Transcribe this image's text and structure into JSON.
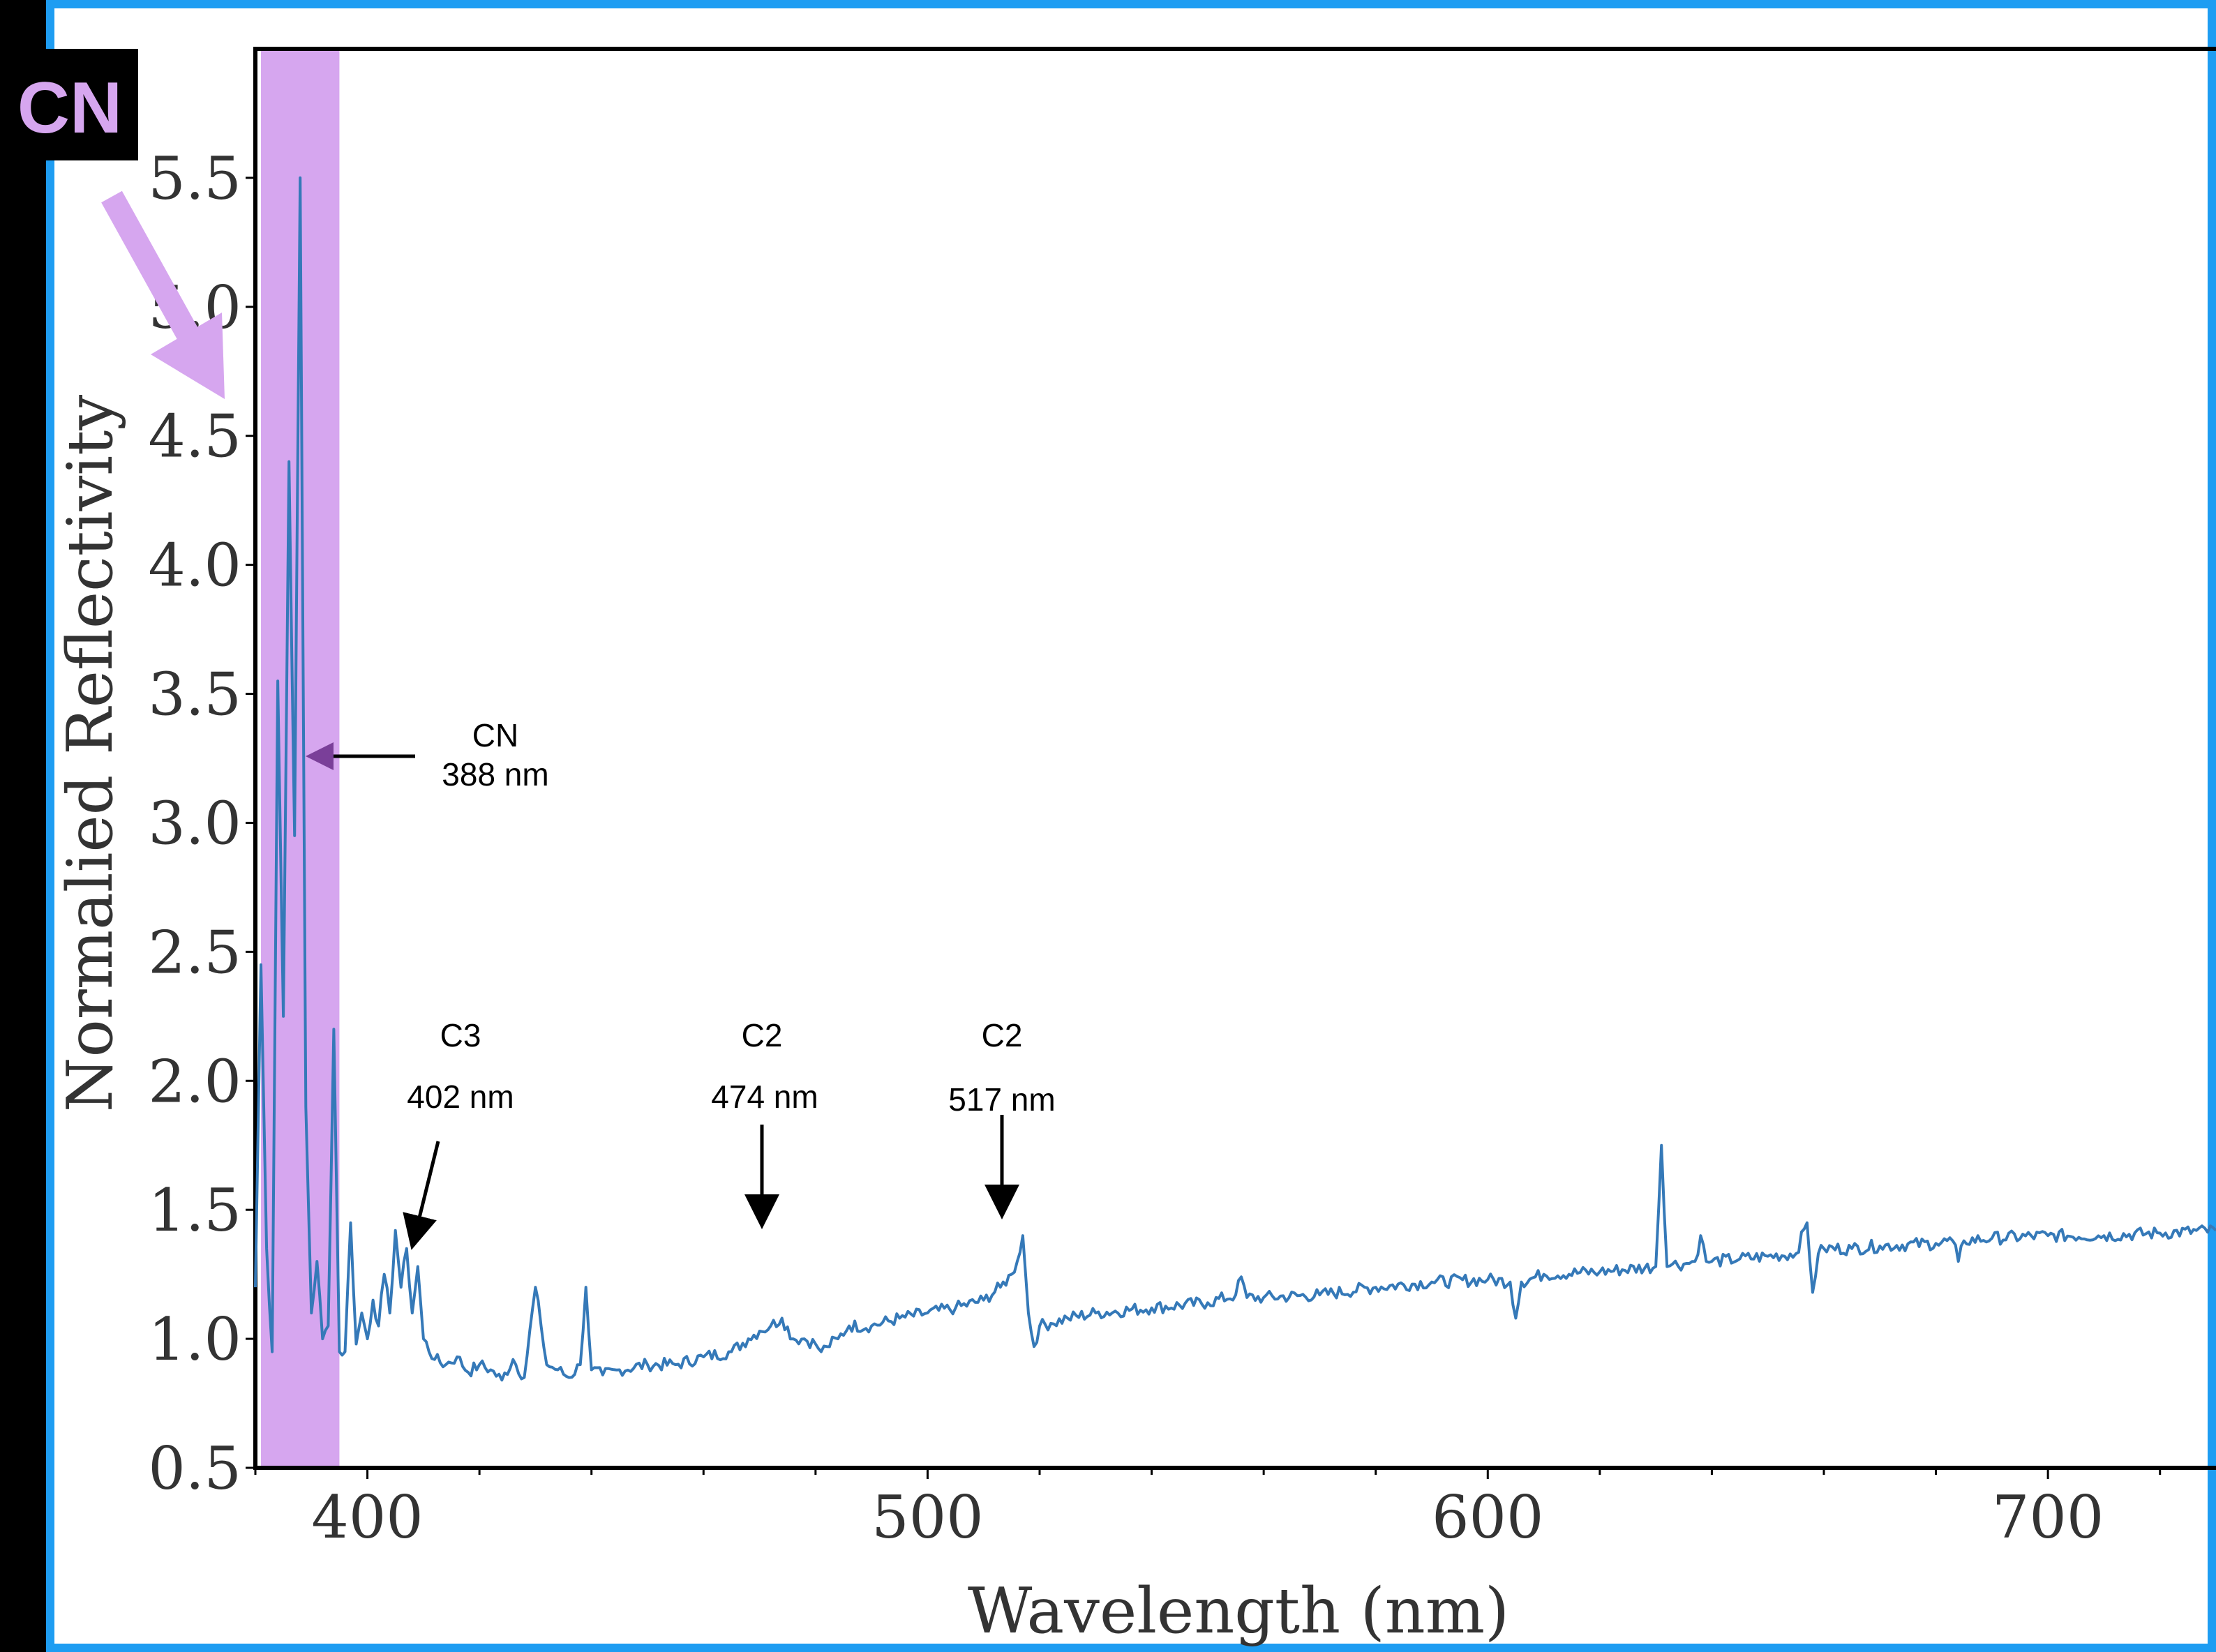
{
  "badge": {
    "label": "CN"
  },
  "colors": {
    "background": "#000000",
    "frame_border": "#1e9df2",
    "band": "#d6a6ef",
    "line": "#3579b8",
    "band_arrow": "#7a3f99",
    "badge_bg": "#000000"
  },
  "chart_data": {
    "type": "line",
    "xlabel": "Wavelength (nm)",
    "ylabel": "Normalied Reflectivity",
    "xlim": [
      380,
      730
    ],
    "ylim": [
      0.5,
      6.0
    ],
    "xticks": [
      "400",
      "500",
      "600",
      "700"
    ],
    "yticks": [
      "0.5",
      "1.0",
      "1.5",
      "2.0",
      "2.5",
      "3.0",
      "3.5",
      "4.0",
      "4.5",
      "5.0",
      "5.5"
    ],
    "highlight_band": {
      "label": "CN",
      "x_range": [
        381,
        395
      ]
    },
    "series": [
      {
        "x": [
          380,
          381,
          382,
          383,
          384,
          385,
          386,
          387,
          388,
          389,
          390,
          391,
          392,
          393,
          394,
          395,
          396,
          397,
          398,
          399,
          400,
          401,
          402,
          403,
          404,
          405,
          406,
          407,
          408,
          409,
          410,
          412,
          414,
          416,
          418,
          420,
          422,
          424,
          426,
          428,
          430,
          431,
          432,
          434,
          436,
          438,
          439,
          440,
          442,
          445,
          450,
          455,
          460,
          465,
          468,
          470,
          472,
          474,
          476,
          478,
          480,
          481,
          482,
          484,
          486,
          490,
          495,
          500,
          505,
          510,
          513,
          515,
          516,
          517,
          518,
          519,
          520,
          522,
          525,
          530,
          540,
          550,
          555,
          556,
          557,
          560,
          570,
          580,
          590,
          600,
          604,
          605,
          606,
          610,
          620,
          630,
          631,
          632,
          633,
          635,
          637,
          638,
          639,
          640,
          645,
          650,
          655,
          657,
          658,
          659,
          660,
          665,
          670,
          680,
          683,
          684,
          685,
          690,
          700,
          710,
          720,
          730
        ],
        "y": [
          1.2,
          2.45,
          1.35,
          0.95,
          3.55,
          2.25,
          4.4,
          2.95,
          5.5,
          1.9,
          1.1,
          1.3,
          1.0,
          1.05,
          2.2,
          0.95,
          0.95,
          1.45,
          0.98,
          1.1,
          1.0,
          1.15,
          1.05,
          1.25,
          1.1,
          1.42,
          1.2,
          1.35,
          1.1,
          1.28,
          1.0,
          0.92,
          0.9,
          0.93,
          0.87,
          0.9,
          0.88,
          0.84,
          0.92,
          0.85,
          1.2,
          1.05,
          0.9,
          0.88,
          0.85,
          0.9,
          1.2,
          0.88,
          0.86,
          0.88,
          0.9,
          0.9,
          0.93,
          0.95,
          1.0,
          1.03,
          1.05,
          1.08,
          1.0,
          1.0,
          0.98,
          0.95,
          0.97,
          1.0,
          1.05,
          1.05,
          1.08,
          1.1,
          1.12,
          1.15,
          1.2,
          1.25,
          1.3,
          1.4,
          1.1,
          0.97,
          1.05,
          1.06,
          1.08,
          1.1,
          1.12,
          1.14,
          1.17,
          1.24,
          1.16,
          1.16,
          1.17,
          1.2,
          1.22,
          1.23,
          1.22,
          1.08,
          1.22,
          1.25,
          1.26,
          1.28,
          1.75,
          1.28,
          1.29,
          1.29,
          1.3,
          1.4,
          1.3,
          1.3,
          1.31,
          1.32,
          1.33,
          1.45,
          1.18,
          1.33,
          1.35,
          1.35,
          1.36,
          1.37,
          1.38,
          1.3,
          1.38,
          1.39,
          1.4,
          1.4,
          1.41,
          1.42
        ]
      }
    ],
    "annotations": [
      {
        "title": "CN",
        "label": "388 nm"
      },
      {
        "title": "C3",
        "label": "402 nm"
      },
      {
        "title": "C2",
        "label": "474 nm"
      },
      {
        "title": "C2",
        "label": "517 nm"
      }
    ]
  }
}
